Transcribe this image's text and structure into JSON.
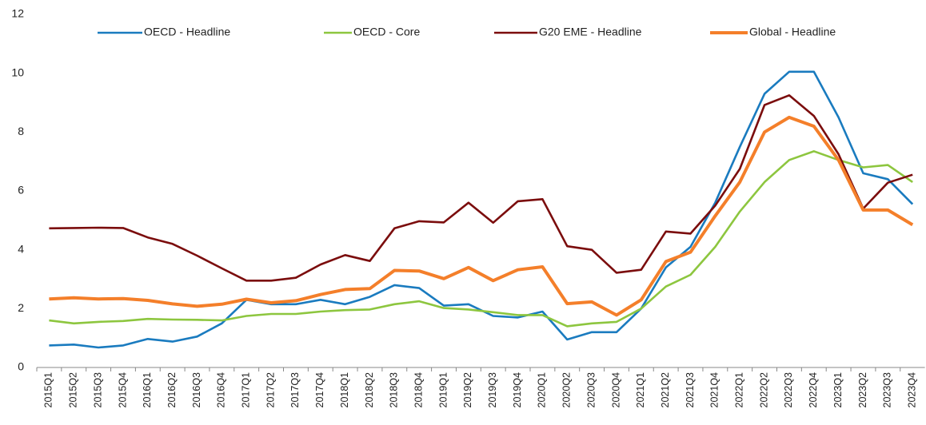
{
  "chart_data": {
    "type": "line",
    "categories": [
      "2015Q1",
      "2015Q2",
      "2015Q3",
      "2015Q4",
      "2016Q1",
      "2016Q2",
      "2016Q3",
      "2016Q4",
      "2017Q1",
      "2017Q2",
      "2017Q3",
      "2017Q4",
      "2018Q1",
      "2018Q2",
      "2018Q3",
      "2018Q4",
      "2019Q1",
      "2019Q2",
      "2019Q3",
      "2019Q4",
      "2020Q1",
      "2020Q2",
      "2020Q3",
      "2020Q4",
      "2021Q1",
      "2021Q2",
      "2021Q3",
      "2021Q4",
      "2022Q1",
      "2022Q2",
      "2022Q3",
      "2022Q4",
      "2023Q1",
      "2023Q2",
      "2023Q3",
      "2023Q4"
    ],
    "series": [
      {
        "name": "OECD - Headline",
        "color": "#1a7bbf",
        "values": [
          0.75,
          0.78,
          0.68,
          0.75,
          0.97,
          0.88,
          1.05,
          1.5,
          2.3,
          2.15,
          2.15,
          2.3,
          2.15,
          2.4,
          2.8,
          2.7,
          2.1,
          2.15,
          1.75,
          1.7,
          1.9,
          0.95,
          1.2,
          1.2,
          2.0,
          3.4,
          4.1,
          5.6,
          7.5,
          9.3,
          10.05,
          10.05,
          8.5,
          6.6,
          6.4,
          5.55
        ]
      },
      {
        "name": "OECD - Core",
        "color": "#8dc63f",
        "values": [
          1.6,
          1.5,
          1.55,
          1.58,
          1.65,
          1.63,
          1.62,
          1.6,
          1.75,
          1.82,
          1.82,
          1.9,
          1.95,
          1.97,
          2.15,
          2.25,
          2.02,
          1.97,
          1.88,
          1.78,
          1.78,
          1.4,
          1.5,
          1.55,
          2.0,
          2.75,
          3.15,
          4.1,
          5.3,
          6.3,
          7.05,
          7.35,
          7.05,
          6.8,
          6.88,
          6.3
        ]
      },
      {
        "name": "G20 EME - Headline",
        "color": "#7b0d0d",
        "values": [
          4.73,
          4.74,
          4.75,
          4.74,
          4.42,
          4.2,
          3.8,
          3.37,
          2.95,
          2.95,
          3.05,
          3.5,
          3.82,
          3.62,
          4.73,
          4.97,
          4.93,
          5.6,
          4.92,
          5.65,
          5.72,
          4.12,
          4.0,
          3.22,
          3.32,
          4.62,
          4.55,
          5.5,
          6.75,
          8.92,
          9.25,
          8.55,
          7.25,
          5.4,
          6.28,
          6.55
        ]
      },
      {
        "name": "Global - Headline",
        "color": "#f47f2a",
        "values": [
          2.33,
          2.37,
          2.33,
          2.34,
          2.28,
          2.16,
          2.08,
          2.15,
          2.32,
          2.2,
          2.27,
          2.48,
          2.65,
          2.68,
          3.3,
          3.28,
          3.02,
          3.4,
          2.95,
          3.32,
          3.42,
          2.17,
          2.23,
          1.78,
          2.3,
          3.6,
          3.92,
          5.15,
          6.3,
          8.0,
          8.5,
          8.2,
          7.05,
          5.35,
          5.35,
          4.85
        ]
      }
    ],
    "ylim": [
      0,
      12
    ],
    "yticks": [
      0,
      2,
      4,
      6,
      8,
      10,
      12
    ],
    "grid": false,
    "legend": "top"
  }
}
